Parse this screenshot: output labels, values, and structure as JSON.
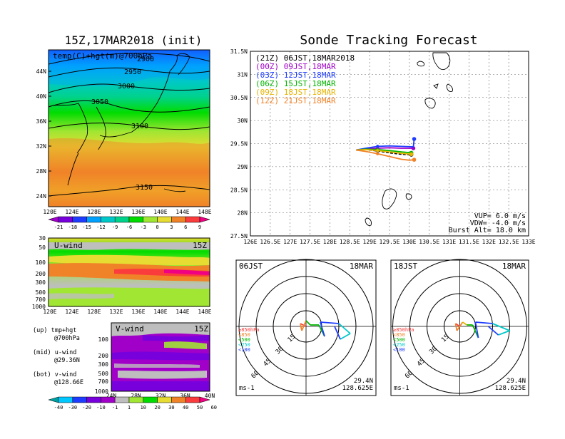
{
  "left_title": "15Z,17MAR2018 (init)",
  "right_title": "Sonde Tracking Forecast",
  "map_panel": {
    "label": "temp(C)+hgt(m)@700hPa",
    "contour_labels": [
      "2900",
      "2950",
      "3000",
      "3050",
      "3100",
      "3150"
    ],
    "lat_ticks": [
      "44N",
      "40N",
      "36N",
      "32N",
      "28N",
      "24N"
    ],
    "lon_ticks": [
      "120E",
      "124E",
      "128E",
      "132E",
      "136E",
      "140E",
      "144E",
      "148E"
    ]
  },
  "temp_colorbar": {
    "labels": [
      "-21",
      "-18",
      "-15",
      "-12",
      "-9",
      "-6",
      "-3",
      "0",
      "3",
      "6",
      "9"
    ],
    "colors": [
      "#a000c8",
      "#7800dc",
      "#1e3cff",
      "#00a0ff",
      "#00c8c8",
      "#00d28c",
      "#00dc00",
      "#a0e632",
      "#e6dc32",
      "#f08228",
      "#fa3c3c",
      "#f00082"
    ]
  },
  "uwind_panel": {
    "label": "U-wind",
    "time": "15Z",
    "y_ticks": [
      "30",
      "50",
      "100",
      "200",
      "300",
      "500",
      "700",
      "1000"
    ],
    "x_ticks": [
      "120E",
      "124E",
      "128E",
      "132E",
      "136E",
      "140E",
      "144E",
      "148E"
    ]
  },
  "vwind_panel": {
    "label": "V-wind",
    "time": "15Z",
    "y_ticks": [
      "100",
      "200",
      "300",
      "500",
      "700",
      "1000"
    ],
    "x_ticks": [
      "24N",
      "28N",
      "32N",
      "36N",
      "40N"
    ]
  },
  "notes": [
    {
      "line1": "(up) tmp+hgt",
      "line2": "@700hPa"
    },
    {
      "line1": "(mid) u-wind",
      "line2": "@29.36N"
    },
    {
      "line1": "(bot) v-wind",
      "line2": "@128.66E"
    }
  ],
  "wind_colorbar": {
    "labels": [
      "-40",
      "-30",
      "-20",
      "-10",
      "-1",
      "1",
      "10",
      "20",
      "30",
      "40",
      "50",
      "60"
    ],
    "colors": [
      "#00a0a0",
      "#00c8ff",
      "#1e3cff",
      "#7800dc",
      "#a000c8",
      "#bebebe",
      "#a0e632",
      "#00dc00",
      "#e6dc32",
      "#f08228",
      "#fa3c3c",
      "#f00082"
    ]
  },
  "tracking": {
    "legend": [
      {
        "text": "(21Z) 06JST,18MAR2018",
        "color": "#000000"
      },
      {
        "text": "(00Z) 09JST,18MAR",
        "color": "#a000c8"
      },
      {
        "text": "(03Z) 12JST,18MAR",
        "color": "#1e3cff"
      },
      {
        "text": "(06Z) 15JST,18MAR",
        "color": "#00b400"
      },
      {
        "text": "(09Z) 18JST,18MAR",
        "color": "#e6b400"
      },
      {
        "text": "(12Z) 21JST,18MAR",
        "color": "#f08228"
      }
    ],
    "lat_ticks": [
      "31.5N",
      "31N",
      "30.5N",
      "30N",
      "29.5N",
      "29N",
      "28.5N",
      "28N",
      "27.5N"
    ],
    "lon_ticks": [
      "126E",
      "126.5E",
      "127E",
      "127.5E",
      "128E",
      "128.5E",
      "129E",
      "129.5E",
      "130E",
      "130.5E",
      "131E",
      "131.5E",
      "132E",
      "132.5E",
      "133E"
    ],
    "info": [
      "VUP= 6.0 m/s",
      "VDW= -4.0 m/s",
      "Burst Alt= 18.0 km"
    ]
  },
  "chart_data": {
    "type": "line",
    "title": "Sonde Tracking Forecast",
    "xlabel": "",
    "ylabel": "",
    "xlim": [
      126,
      133
    ],
    "ylim": [
      27.5,
      31.5
    ],
    "series": [
      {
        "name": "(21Z) 06JST,18MAR2018",
        "color": "#000000",
        "x": [
          128.66,
          128.9,
          129.2,
          129.5,
          129.8,
          130.05
        ],
        "y": [
          29.36,
          29.37,
          29.34,
          29.3,
          29.27,
          29.26
        ]
      },
      {
        "name": "(00Z) 09JST,18MAR",
        "color": "#a000c8",
        "x": [
          128.66,
          128.9,
          129.2,
          129.5,
          129.8,
          130.1
        ],
        "y": [
          29.36,
          29.39,
          29.4,
          29.41,
          29.4,
          29.4
        ]
      },
      {
        "name": "(03Z) 12JST,18MAR",
        "color": "#1e3cff",
        "x": [
          128.66,
          128.9,
          129.2,
          129.5,
          129.8,
          130.1,
          130.12
        ],
        "y": [
          29.36,
          29.4,
          29.44,
          29.45,
          29.44,
          29.43,
          29.6
        ]
      },
      {
        "name": "(06Z) 15JST,18MAR",
        "color": "#00b400",
        "x": [
          128.66,
          128.9,
          129.2,
          129.5,
          129.8,
          130.05
        ],
        "y": [
          29.36,
          29.38,
          29.37,
          29.35,
          29.32,
          29.3
        ]
      },
      {
        "name": "(09Z) 18JST,18MAR",
        "color": "#e6b400",
        "x": [
          128.66,
          128.9,
          129.2,
          129.5,
          129.8,
          130.05
        ],
        "y": [
          29.36,
          29.37,
          29.35,
          29.32,
          29.29,
          29.27
        ]
      },
      {
        "name": "(12Z) 21JST,18MAR",
        "color": "#f08228",
        "x": [
          128.66,
          128.9,
          129.2,
          129.5,
          129.8,
          130.0,
          130.12
        ],
        "y": [
          29.36,
          29.33,
          29.28,
          29.22,
          29.16,
          29.14,
          29.15
        ]
      }
    ]
  },
  "hodographs": [
    {
      "label": "06JST",
      "date": "18MAR",
      "lat": "29.4N",
      "lon": "128.625E",
      "unit": "ms-1",
      "rings": [
        "15",
        "30",
        "45",
        "60"
      ],
      "legend": [
        "≥850hPa",
        "<850",
        "<500",
        "<250",
        "<100"
      ],
      "legend_colors": [
        "#fa3c3c",
        "#f08228",
        "#00b400",
        "#00c8c8",
        "#1e3cff"
      ]
    },
    {
      "label": "18JST",
      "date": "18MAR",
      "lat": "29.4N",
      "lon": "128.625E",
      "unit": "ms-1",
      "rings": [
        "15",
        "30",
        "45",
        "60"
      ],
      "legend": [
        "≥850hPa",
        "<850",
        "<500",
        "<250",
        "<100"
      ],
      "legend_colors": [
        "#fa3c3c",
        "#f08228",
        "#00b400",
        "#00c8c8",
        "#1e3cff"
      ]
    }
  ]
}
